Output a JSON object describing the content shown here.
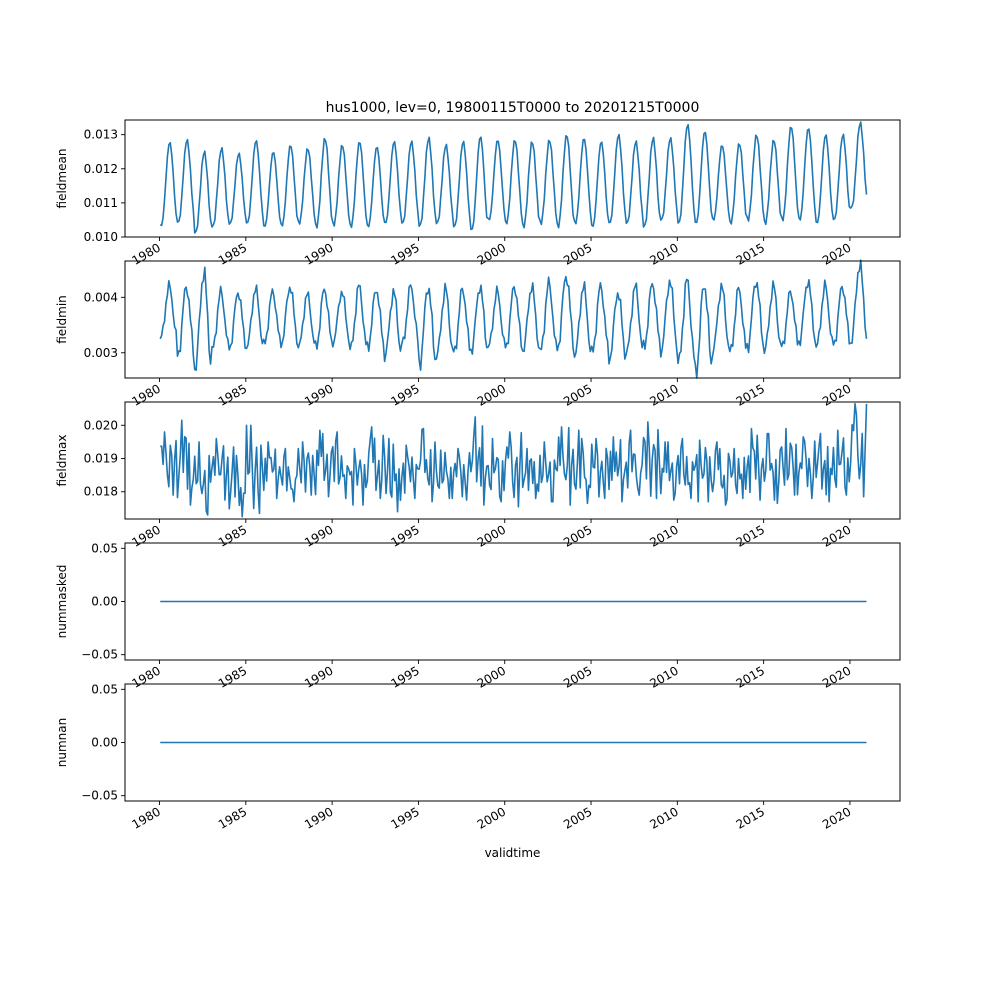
{
  "chart_data": [
    {
      "type": "line",
      "title": "hus1000, lev=0, 19800115T0000 to 20201215T0000",
      "xlabel": "",
      "ylabel": "fieldmean",
      "xlim": [
        1978.0,
        2022.9
      ],
      "ylim": [
        0.01,
        0.01343
      ],
      "x_ticks": [
        "1980",
        "1985",
        "1990",
        "1995",
        "2000",
        "2005",
        "2010",
        "2015",
        "2020"
      ],
      "x_tick_values": [
        1980,
        1985,
        1990,
        1995,
        2000,
        2005,
        2010,
        2015,
        2020
      ],
      "y_ticks": [
        "0.010",
        "0.011",
        "0.012",
        "0.013"
      ],
      "y_tick_values": [
        0.01,
        0.011,
        0.012,
        0.013
      ],
      "color": "#1f77b4",
      "series": [
        {
          "x_start": 1980.04,
          "x_end": 2020.96,
          "points": 492,
          "cycle": "annual",
          "maxima": [
            0.01278,
            0.01285,
            0.0125,
            0.0126,
            0.01245,
            0.01283,
            0.0125,
            0.0127,
            0.0126,
            0.0129,
            0.0127,
            0.0128,
            0.01265,
            0.0128,
            0.0128,
            0.0129,
            0.0127,
            0.0128,
            0.01295,
            0.01285,
            0.01285,
            0.0128,
            0.01285,
            0.013,
            0.0129,
            0.0128,
            0.013,
            0.0128,
            0.0129,
            0.0129,
            0.0133,
            0.0131,
            0.0127,
            0.01275,
            0.013,
            0.01285,
            0.01325,
            0.0132,
            0.013,
            0.013,
            0.01335
          ],
          "minima": [
            0.01032,
            0.01042,
            0.01012,
            0.0103,
            0.01038,
            0.0104,
            0.0103,
            0.01033,
            0.0104,
            0.0103,
            0.01035,
            0.0103,
            0.0103,
            0.0104,
            0.0104,
            0.01032,
            0.0104,
            0.0103,
            0.0102,
            0.0105,
            0.0104,
            0.0103,
            0.0104,
            0.0103,
            0.0104,
            0.0103,
            0.0104,
            0.0104,
            0.0103,
            0.0105,
            0.0104,
            0.0104,
            0.0105,
            0.0104,
            0.0105,
            0.0104,
            0.0105,
            0.0105,
            0.0104,
            0.0105,
            0.01085
          ]
        }
      ]
    },
    {
      "type": "line",
      "xlabel": "",
      "ylabel": "fieldmin",
      "xlim": [
        1978.0,
        2022.9
      ],
      "ylim": [
        0.002545,
        0.004655
      ],
      "x_ticks": [
        "1980",
        "1985",
        "1990",
        "1995",
        "2000",
        "2005",
        "2010",
        "2015",
        "2020"
      ],
      "x_tick_values": [
        1980,
        1985,
        1990,
        1995,
        2000,
        2005,
        2010,
        2015,
        2020
      ],
      "y_ticks": [
        "0.003",
        "0.004"
      ],
      "y_tick_values": [
        0.003,
        0.004
      ],
      "color": "#1f77b4",
      "series": [
        {
          "x_start": 1980.04,
          "x_end": 2020.96,
          "points": 492,
          "cycle": "annual",
          "maxima": [
            0.0042,
            0.0042,
            0.00445,
            0.0041,
            0.0041,
            0.00415,
            0.0041,
            0.0042,
            0.00405,
            0.00415,
            0.0041,
            0.0042,
            0.00415,
            0.0041,
            0.0042,
            0.0042,
            0.00415,
            0.00415,
            0.0042,
            0.0041,
            0.0042,
            0.0042,
            0.00425,
            0.0044,
            0.0042,
            0.0042,
            0.0041,
            0.0042,
            0.00425,
            0.0043,
            0.0043,
            0.00425,
            0.0042,
            0.00415,
            0.0043,
            0.0042,
            0.0041,
            0.0043,
            0.0042,
            0.0042,
            0.0046
          ],
          "minima": [
            0.00325,
            0.00295,
            0.00272,
            0.00305,
            0.0031,
            0.0031,
            0.00315,
            0.00318,
            0.0031,
            0.0031,
            0.0032,
            0.00305,
            0.0031,
            0.00295,
            0.00315,
            0.0028,
            0.00295,
            0.003,
            0.00305,
            0.0031,
            0.0031,
            0.00305,
            0.003,
            0.0031,
            0.00295,
            0.003,
            0.0029,
            0.003,
            0.0031,
            0.00305,
            0.0028,
            0.00265,
            0.00305,
            0.003,
            0.0031,
            0.00305,
            0.0031,
            0.0032,
            0.0031,
            0.00315,
            0.0032
          ]
        }
      ]
    },
    {
      "type": "line",
      "xlabel": "",
      "ylabel": "fieldmax",
      "xlim": [
        1978.0,
        2022.9
      ],
      "ylim": [
        0.01718,
        0.0207
      ],
      "x_ticks": [
        "1980",
        "1985",
        "1990",
        "1995",
        "2000",
        "2005",
        "2010",
        "2015",
        "2020"
      ],
      "x_tick_values": [
        1980,
        1985,
        1990,
        1995,
        2000,
        2005,
        2010,
        2015,
        2020
      ],
      "y_ticks": [
        "0.018",
        "0.019",
        "0.020"
      ],
      "y_tick_values": [
        0.018,
        0.019,
        0.02
      ],
      "color": "#1f77b4",
      "series": [
        {
          "x_start": 1980.04,
          "x_end": 2020.96,
          "points": 492,
          "cycle": "irregular",
          "maxima": [
            0.0198,
            0.02015,
            0.0195,
            0.0196,
            0.01935,
            0.02,
            0.0195,
            0.0193,
            0.0195,
            0.01985,
            0.0198,
            0.0193,
            0.01995,
            0.0196,
            0.0194,
            0.0199,
            0.01925,
            0.0193,
            0.02025,
            0.0196,
            0.0198,
            0.0193,
            0.0195,
            0.01995,
            0.01985,
            0.0196,
            0.01965,
            0.01985,
            0.0201,
            0.0195,
            0.0196,
            0.01955,
            0.0195,
            0.0193,
            0.0199,
            0.01975,
            0.0199,
            0.01965,
            0.01975,
            0.01985,
            0.02065
          ],
          "minima": [
            0.0179,
            0.0176,
            0.0173,
            0.01775,
            0.01725,
            0.01735,
            0.0178,
            0.0177,
            0.0179,
            0.01785,
            0.0178,
            0.0176,
            0.0178,
            0.0174,
            0.0178,
            0.0177,
            0.0178,
            0.01775,
            0.0176,
            0.0177,
            0.01755,
            0.0178,
            0.0177,
            0.0176,
            0.01765,
            0.0178,
            0.0177,
            0.0179,
            0.0178,
            0.01775,
            0.0178,
            0.0177,
            0.0176,
            0.0178,
            0.01775,
            0.01765,
            0.0179,
            0.0178,
            0.0177,
            0.0179,
            0.01785
          ]
        }
      ]
    },
    {
      "type": "line",
      "xlabel": "",
      "ylabel": "nummasked",
      "xlim": [
        1978.0,
        2022.9
      ],
      "ylim": [
        -0.055,
        0.055
      ],
      "x_ticks": [
        "1980",
        "1985",
        "1990",
        "1995",
        "2000",
        "2005",
        "2010",
        "2015",
        "2020"
      ],
      "x_tick_values": [
        1980,
        1985,
        1990,
        1995,
        2000,
        2005,
        2010,
        2015,
        2020
      ],
      "y_ticks": [
        "−0.05",
        "0.00",
        "0.05"
      ],
      "y_tick_values": [
        -0.05,
        0.0,
        0.05
      ],
      "color": "#1f77b4",
      "series": [
        {
          "x_start": 1980.04,
          "x_end": 2020.96,
          "constant": 0.0
        }
      ]
    },
    {
      "type": "line",
      "xlabel": "validtime",
      "ylabel": "numnan",
      "xlim": [
        1978.0,
        2022.9
      ],
      "ylim": [
        -0.055,
        0.055
      ],
      "x_ticks": [
        "1980",
        "1985",
        "1990",
        "1995",
        "2000",
        "2005",
        "2010",
        "2015",
        "2020"
      ],
      "x_tick_values": [
        1980,
        1985,
        1990,
        1995,
        2000,
        2005,
        2010,
        2015,
        2020
      ],
      "y_ticks": [
        "−0.05",
        "0.00",
        "0.05"
      ],
      "y_tick_values": [
        -0.05,
        0.0,
        0.05
      ],
      "color": "#1f77b4",
      "series": [
        {
          "x_start": 1980.04,
          "x_end": 2020.96,
          "constant": 0.0
        }
      ]
    }
  ]
}
